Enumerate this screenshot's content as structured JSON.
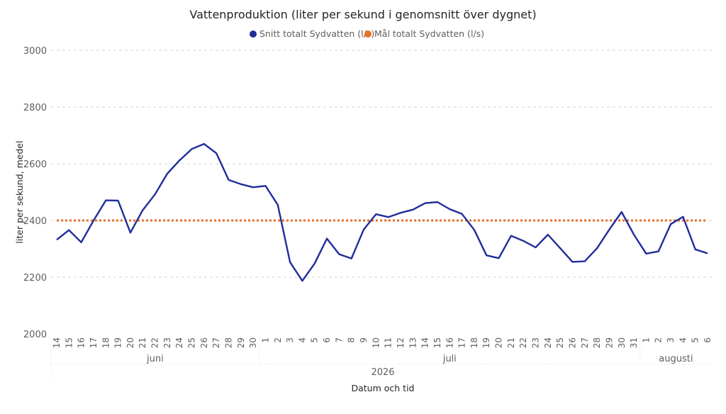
{
  "chart_data": {
    "type": "line",
    "title": "Vattenproduktion (liter per sekund i genomsnitt över dygnet)",
    "xlabel": "Datum och tid",
    "ylabel": "liter per sekund, medel",
    "ylim": [
      2000,
      3000
    ],
    "yticks": [
      "2000",
      "2200",
      "2400",
      "2600",
      "2800",
      "3000"
    ],
    "grid": true,
    "legend": "top-center",
    "year": "2026",
    "months": [
      {
        "label": "juni",
        "start": 0,
        "end": 16
      },
      {
        "label": "juli",
        "start": 17,
        "end": 47
      },
      {
        "label": "augusti",
        "start": 48,
        "end": 53
      }
    ],
    "x": [
      "14",
      "15",
      "16",
      "17",
      "18",
      "19",
      "20",
      "21",
      "22",
      "23",
      "24",
      "25",
      "26",
      "27",
      "28",
      "29",
      "30",
      "1",
      "2",
      "3",
      "4",
      "5",
      "6",
      "7",
      "8",
      "9",
      "10",
      "11",
      "12",
      "13",
      "14",
      "15",
      "16",
      "17",
      "18",
      "19",
      "20",
      "21",
      "22",
      "23",
      "24",
      "25",
      "26",
      "27",
      "28",
      "29",
      "30",
      "31",
      "1",
      "2",
      "3",
      "4",
      "5",
      "6"
    ],
    "series": [
      {
        "name": "Snitt totalt Sydvatten (l/s)",
        "color": "#1f2d9b",
        "style": "solid",
        "values": [
          2332,
          2366,
          2323,
          2400,
          2471,
          2470,
          2357,
          2436,
          2492,
          2565,
          2612,
          2652,
          2670,
          2637,
          2543,
          2528,
          2517,
          2522,
          2455,
          2253,
          2187,
          2248,
          2336,
          2281,
          2266,
          2368,
          2422,
          2412,
          2427,
          2438,
          2461,
          2465,
          2440,
          2423,
          2367,
          2277,
          2267,
          2346,
          2328,
          2305,
          2350,
          2302,
          2254,
          2256,
          2302,
          2368,
          2430,
          2350,
          2283,
          2291,
          2387,
          2413,
          2298,
          2284
        ]
      },
      {
        "name": "Mål totalt Sydvatten (l/s)",
        "color": "#e8702a",
        "style": "dotted",
        "values": [
          2400,
          2400,
          2400,
          2400,
          2400,
          2400,
          2400,
          2400,
          2400,
          2400,
          2400,
          2400,
          2400,
          2400,
          2400,
          2400,
          2400,
          2400,
          2400,
          2400,
          2400,
          2400,
          2400,
          2400,
          2400,
          2400,
          2400,
          2400,
          2400,
          2400,
          2400,
          2400,
          2400,
          2400,
          2400,
          2400,
          2400,
          2400,
          2400,
          2400,
          2400,
          2400,
          2400,
          2400,
          2400,
          2400,
          2400,
          2400,
          2400,
          2400,
          2400,
          2400,
          2400,
          2400
        ]
      }
    ]
  }
}
